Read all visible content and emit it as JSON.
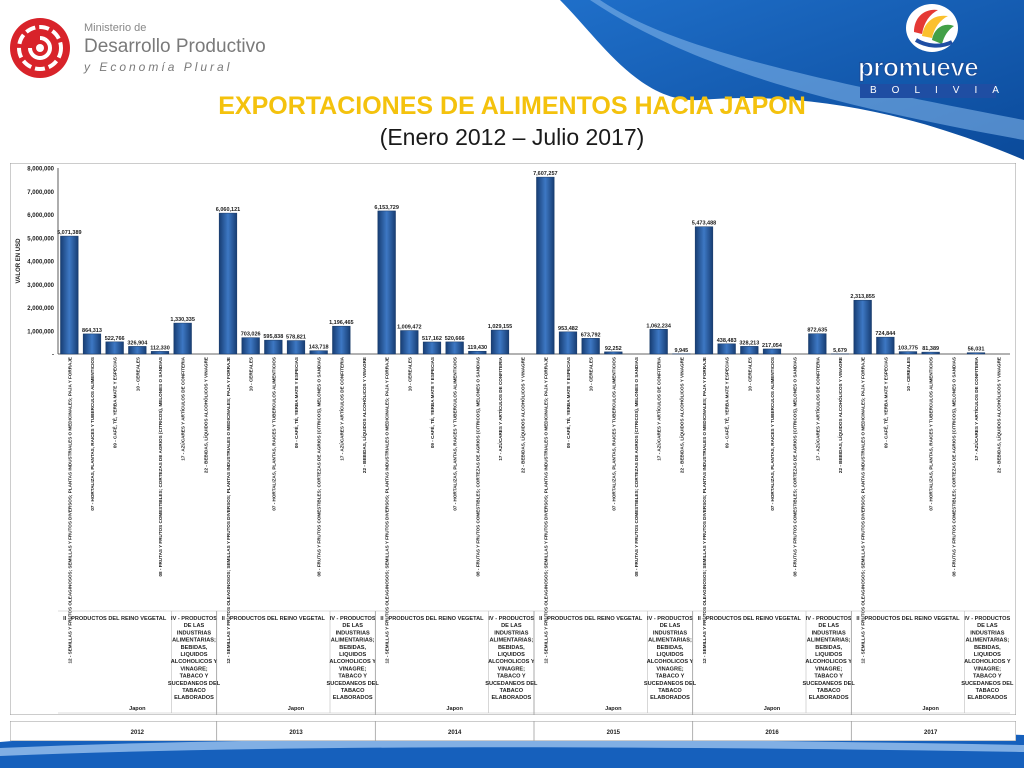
{
  "header": {
    "ministry_line1": "Ministerio de",
    "ministry_line2": "Desarrollo Productivo",
    "ministry_line3": "y Economía Plural",
    "brand_name": "promueve",
    "brand_sub": "BOLIVIA"
  },
  "slide": {
    "title": "EXPORTACIONES DE ALIMENTOS HACIA JAPON",
    "subtitle": "(Enero 2012 – Julio 2017)"
  },
  "colors": {
    "bar": "#2f64a8",
    "bar_dark": "#173d73",
    "title": "#f4c20d",
    "ministry_red": "#d8232a",
    "brand_blue": "#1f4ea3"
  },
  "chart_data": {
    "type": "bar",
    "title": "",
    "ylabel": "VALOR EN USD",
    "ylim": [
      0,
      8000000
    ],
    "ytick_labels": [
      "-",
      "1,000,000",
      "2,000,000",
      "3,000,000",
      "4,000,000",
      "5,000,000",
      "6,000,000",
      "7,000,000",
      "8,000,000"
    ],
    "grid": false,
    "legend": "none",
    "country_label": "Japon",
    "groups": [
      {
        "year": "2012",
        "sections": [
          {
            "name": "II - PRODUCTOS DEL REINO VEGETAL",
            "bars": [
              {
                "category": "12 - SEMILLAS Y FRUTOS OLEAGINOSOS; SEMILLAS Y FRUTOS DIVERSOS; PLANTAS INDUSTRIALES O MEDICINALES; PAJA Y FORRAJE",
                "value": 5071389,
                "label": "5,071,389"
              },
              {
                "category": "07 - HORTALIZAS, PLANTAS, RAICES Y TUBERCULOS ALIMENTICIOS",
                "value": 864313,
                "label": "864,313"
              },
              {
                "category": "09 - CAFÉ, TÉ, YERBA MATE Y ESPECIAS",
                "value": 522766,
                "label": "522,766"
              },
              {
                "category": "10 - CEREALES",
                "value": 326904,
                "label": "326,904"
              },
              {
                "category": "08 - FRUTAS Y FRUTOS COMESTIBLES; CORTEZAS DE AGRIOS (CITRICOS), MELONES O SANDIAS",
                "value": 112330,
                "label": "112,330"
              }
            ]
          },
          {
            "name": "IV - PRODUCTOS DE LAS INDUSTRIAS ALIMENTARIAS; BEBIDAS, LIQUIDOS ALCOHOLICOS Y VINAGRE; TABACO Y SUCEDANEOS DEL TABACO ELABORADOS",
            "bars": [
              {
                "category": "17 - AZÚCARES Y ARTÍCULOS DE CONFITERIA",
                "value": 1330335,
                "label": "1,330,335"
              },
              {
                "category": "22 - BEBIDAS, LÍQUIDOS ALCOHÓLICOS Y VINAGRE",
                "value": 0,
                "label": ""
              }
            ]
          }
        ]
      },
      {
        "year": "2013",
        "sections": [
          {
            "name": "II - PRODUCTOS DEL REINO VEGETAL",
            "bars": [
              {
                "category": "12 - SEMILLAS Y FRUTOS OLEAGINOSOS; SEMILLAS Y FRUTOS DIVERSOS; PLANTAS INDUSTRIALES O MEDICINALES; PAJA Y FORRAJE",
                "value": 6060121,
                "label": "6,060,121"
              },
              {
                "category": "10 - CEREALES",
                "value": 703026,
                "label": "703,026"
              },
              {
                "category": "07 - HORTALIZAS, PLANTAS, RAICES Y TUBERCULOS ALIMENTICIOS",
                "value": 595838,
                "label": "595,838"
              },
              {
                "category": "09 - CAFÉ, TÉ, YERBA MATE Y ESPECIAS",
                "value": 578821,
                "label": "578,821"
              },
              {
                "category": "08 - FRUTAS Y FRUTOS COMESTIBLES; CORTEZAS DE AGRIOS (CITRICOS), MELONES O SANDIAS",
                "value": 143718,
                "label": "143,718"
              }
            ]
          },
          {
            "name": "IV - PRODUCTOS DE LAS INDUSTRIAS ALIMENTARIAS; BEBIDAS, LIQUIDOS ALCOHOLICOS Y VINAGRE; TABACO Y SUCEDANEOS DEL TABACO ELABORADOS",
            "bars": [
              {
                "category": "17 - AZÚCARES Y ARTÍCULOS DE CONFITERIA",
                "value": 1196465,
                "label": "1,196,465"
              },
              {
                "category": "22 - BEBIDAS, LÍQUIDOS ALCOHÓLICOS Y VINAGRE",
                "value": 0,
                "label": ""
              }
            ]
          }
        ]
      },
      {
        "year": "2014",
        "sections": [
          {
            "name": "II - PRODUCTOS DEL REINO VEGETAL",
            "bars": [
              {
                "category": "12 - SEMILLAS Y FRUTOS OLEAGINOSOS; SEMILLAS Y FRUTOS DIVERSOS; PLANTAS INDUSTRIALES O MEDICINALES; PAJA Y FORRAJE",
                "value": 6153729,
                "label": "6,153,729"
              },
              {
                "category": "10 - CEREALES",
                "value": 1009472,
                "label": "1,009,472"
              },
              {
                "category": "09 - CAFÉ, TÉ, YERBA MATE Y ESPECIAS",
                "value": 517162,
                "label": "517,162"
              },
              {
                "category": "07 - HORTALIZAS, PLANTAS, RAICES Y TUBERCULOS ALIMENTICIOS",
                "value": 520666,
                "label": "520,666"
              },
              {
                "category": "08 - FRUTAS Y FRUTOS COMESTIBLES; CORTEZAS DE AGRIOS (CITRICOS), MELONES O SANDIAS",
                "value": 119430,
                "label": "119,430"
              }
            ]
          },
          {
            "name": "IV - PRODUCTOS DE LAS INDUSTRIAS ALIMENTARIAS; BEBIDAS, LIQUIDOS ALCOHOLICOS Y VINAGRE; TABACO Y SUCEDANEOS DEL TABACO ELABORADOS",
            "bars": [
              {
                "category": "17 - AZÚCARES Y ARTÍCULOS DE CONFITERIA",
                "value": 1029155,
                "label": "1,029,155"
              },
              {
                "category": "22 - BEBIDAS, LÍQUIDOS ALCOHÓLICOS Y VINAGRE",
                "value": 0,
                "label": ""
              }
            ]
          }
        ]
      },
      {
        "year": "2015",
        "sections": [
          {
            "name": "II - PRODUCTOS DEL REINO VEGETAL",
            "bars": [
              {
                "category": "12 - SEMILLAS Y FRUTOS OLEAGINOSOS; SEMILLAS Y FRUTOS DIVERSOS; PLANTAS INDUSTRIALES O MEDICINALES; PAJA Y FORRAJE",
                "value": 7607257,
                "label": "7,607,257"
              },
              {
                "category": "09 - CAFÉ, TÉ, YERBA MATE Y ESPECIAS",
                "value": 953482,
                "label": "953,482"
              },
              {
                "category": "10 - CEREALES",
                "value": 673792,
                "label": "673,792"
              },
              {
                "category": "07 - HORTALIZAS, PLANTAS, RAICES Y TUBERCULOS ALIMENTICIOS",
                "value": 92252,
                "label": "92,252"
              },
              {
                "category": "08 - FRUTAS Y FRUTOS COMESTIBLES; CORTEZAS DE AGRIOS (CITRICOS), MELONES O SANDIAS",
                "value": 0,
                "label": ""
              }
            ]
          },
          {
            "name": "IV - PRODUCTOS DE LAS INDUSTRIAS ALIMENTARIAS; BEBIDAS, LIQUIDOS ALCOHOLICOS Y VINAGRE; TABACO Y SUCEDANEOS DEL TABACO ELABORADOS",
            "bars": [
              {
                "category": "17 - AZÚCARES Y ARTÍCULOS DE CONFITERIA",
                "value": 1062234,
                "label": "1,062,234"
              },
              {
                "category": "22 - BEBIDAS, LÍQUIDOS ALCOHÓLICOS Y VINAGRE",
                "value": 9945,
                "label": "9,945"
              }
            ]
          }
        ]
      },
      {
        "year": "2016",
        "sections": [
          {
            "name": "II - PRODUCTOS DEL REINO VEGETAL",
            "bars": [
              {
                "category": "12 - SEMILLAS Y FRUTOS OLEAGINOSOS; SEMILLAS Y FRUTOS DIVERSOS; PLANTAS INDUSTRIALES O MEDICINALES; PAJA Y FORRAJE",
                "value": 5473488,
                "label": "5,473,488"
              },
              {
                "category": "09 - CAFÉ, TÉ, YERBA MATE Y ESPECIAS",
                "value": 438483,
                "label": "438,483"
              },
              {
                "category": "10 - CEREALES",
                "value": 328213,
                "label": "328,213"
              },
              {
                "category": "07 - HORTALIZAS, PLANTAS, RAICES Y TUBERCULOS ALIMENTICIOS",
                "value": 217054,
                "label": "217,054"
              },
              {
                "category": "08 - FRUTAS Y FRUTOS COMESTIBLES; CORTEZAS DE AGRIOS (CITRICOS), MELONES O SANDIAS",
                "value": 0,
                "label": ""
              }
            ]
          },
          {
            "name": "IV - PRODUCTOS DE LAS INDUSTRIAS ALIMENTARIAS; BEBIDAS, LIQUIDOS ALCOHOLICOS Y VINAGRE; TABACO Y SUCEDANEOS DEL TABACO ELABORADOS",
            "bars": [
              {
                "category": "17 - AZÚCARES Y ARTÍCULOS DE CONFITERIA",
                "value": 872635,
                "label": "872,635"
              },
              {
                "category": "22 - BEBIDAS, LÍQUIDOS ALCOHÓLICOS Y VINAGRE",
                "value": 5679,
                "label": "5,679"
              }
            ]
          }
        ]
      },
      {
        "year": "2017",
        "sections": [
          {
            "name": "II - PRODUCTOS DEL REINO VEGETAL",
            "bars": [
              {
                "category": "12 - SEMILLAS Y FRUTOS OLEAGINOSOS; SEMILLAS Y FRUTOS DIVERSOS; PLANTAS INDUSTRIALES O MEDICINALES; PAJA Y FORRAJE",
                "value": 2313855,
                "label": "2,313,855"
              },
              {
                "category": "09 - CAFÉ, TÉ, YERBA MATE Y ESPECIAS",
                "value": 724844,
                "label": "724,844"
              },
              {
                "category": "10 - CEREALES",
                "value": 103775,
                "label": "103,775"
              },
              {
                "category": "07 - HORTALIZAS, PLANTAS, RAICES Y TUBERCULOS ALIMENTICIOS",
                "value": 81389,
                "label": "81,389"
              },
              {
                "category": "08 - FRUTAS Y FRUTOS COMESTIBLES; CORTEZAS DE AGRIOS (CITRICOS), MELONES O SANDIAS",
                "value": 0,
                "label": ""
              }
            ]
          },
          {
            "name": "IV - PRODUCTOS DE LAS INDUSTRIAS ALIMENTARIAS; BEBIDAS, LIQUIDOS ALCOHOLICOS Y VINAGRE; TABACO Y SUCEDANEOS DEL TABACO ELABORADOS",
            "bars": [
              {
                "category": "17 - AZÚCARES Y ARTÍCULOS DE CONFITERIA",
                "value": 56031,
                "label": "56,031"
              },
              {
                "category": "22 - BEBIDAS, LÍQUIDOS ALCOHÓLICOS Y VINAGRE",
                "value": 0,
                "label": ""
              }
            ]
          }
        ]
      }
    ]
  }
}
